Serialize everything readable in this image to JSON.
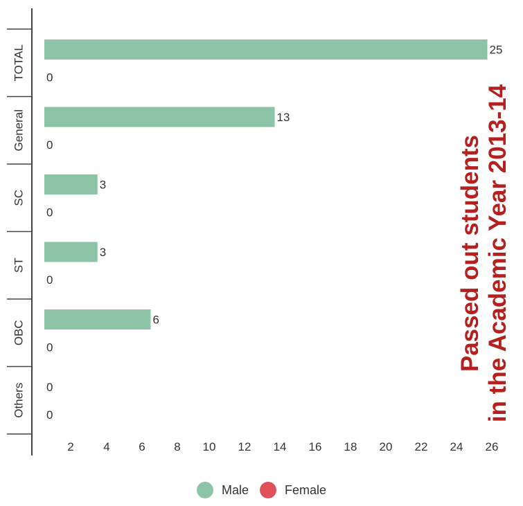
{
  "chart_data": {
    "type": "bar",
    "orientation": "horizontal",
    "title_lines": [
      "Passed out students",
      "in the Academic Year 2013-14"
    ],
    "categories": [
      "TOTAL",
      "General",
      "SC",
      "ST",
      "OBC",
      "Others"
    ],
    "series": [
      {
        "name": "Male",
        "values": [
          25,
          13,
          3,
          3,
          6,
          0
        ],
        "color": "#8dc3a7"
      },
      {
        "name": "Female",
        "values": [
          0,
          0,
          0,
          0,
          0,
          0
        ],
        "color": "#e0505a"
      }
    ],
    "xticks": [
      2,
      4,
      6,
      8,
      10,
      12,
      14,
      16,
      18,
      20,
      22,
      24,
      26
    ],
    "xlim": [
      0,
      26
    ],
    "grid": false,
    "legend_position": "bottom-center",
    "title_color": "#b5201e"
  }
}
